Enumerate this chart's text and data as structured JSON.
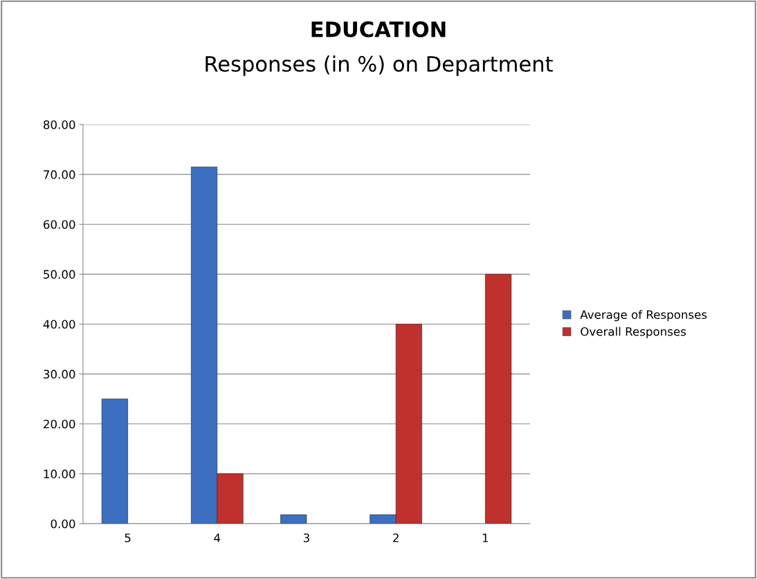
{
  "chart_data": {
    "type": "bar",
    "title": "EDUCATION",
    "subtitle": "Responses (in %) on Department",
    "categories": [
      "5",
      "4",
      "3",
      "2",
      "1"
    ],
    "series": [
      {
        "name": "Average of Responses",
        "color": "#3d6fc0",
        "values": [
          25.0,
          71.5,
          1.8,
          1.8,
          null
        ]
      },
      {
        "name": "Overall Responses",
        "color": "#c0302c",
        "values": [
          null,
          10.0,
          null,
          40.0,
          50.0
        ]
      }
    ],
    "ylim": [
      0,
      80
    ],
    "yticks": [
      {
        "value": 0,
        "label": "0.00"
      },
      {
        "value": 10,
        "label": "10.00"
      },
      {
        "value": 20,
        "label": "20.00"
      },
      {
        "value": 30,
        "label": "30.00"
      },
      {
        "value": 40,
        "label": "40.00"
      },
      {
        "value": 50,
        "label": "50.00"
      },
      {
        "value": 60,
        "label": "60.00"
      },
      {
        "value": 70,
        "label": "70.00"
      },
      {
        "value": 80,
        "label": "80.00"
      }
    ],
    "grid": "y",
    "legend": "right"
  }
}
